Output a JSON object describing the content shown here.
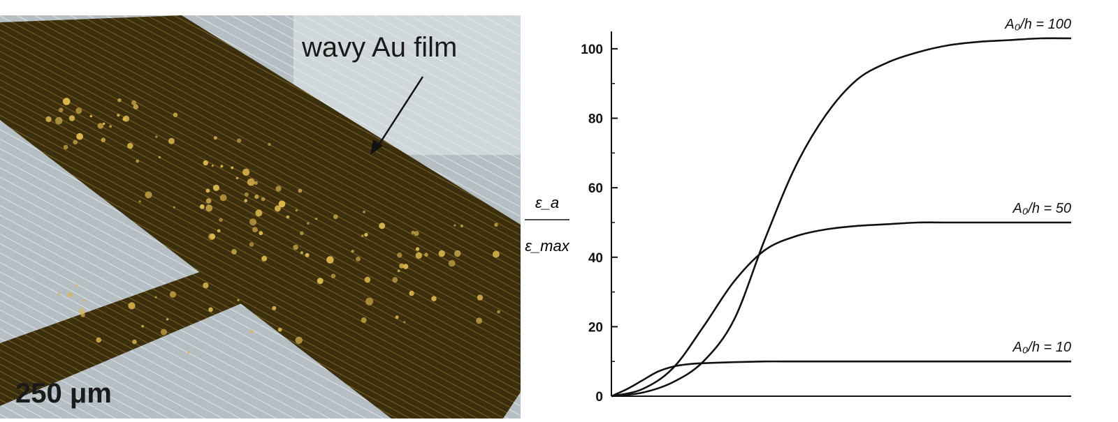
{
  "photo": {
    "annotation": "wavy Au film",
    "scale_bar": "250 μm",
    "colors": {
      "substrate": "#b9c2c6",
      "film": "#4a3b12",
      "grain": "#d8b24a"
    }
  },
  "chart_data": {
    "type": "line",
    "title": "",
    "xlabel": "",
    "ylabel_numerator": "ε_a",
    "ylabel_denominator": "ε_max",
    "xlim": [
      0.3,
      0.6
    ],
    "ylim": [
      0,
      105
    ],
    "yticks": [
      0,
      20,
      40,
      60,
      80,
      100
    ],
    "series": [
      {
        "name": "A₀/h = 100",
        "x": [
          0.3,
          0.32,
          0.34,
          0.36,
          0.38,
          0.4,
          0.42,
          0.44,
          0.46,
          0.48,
          0.5,
          0.52,
          0.54,
          0.56,
          0.58,
          0.6
        ],
        "y": [
          0,
          1,
          4,
          10,
          22,
          45,
          66,
          81,
          91,
          96,
          99,
          101,
          102,
          102.5,
          103,
          103
        ]
      },
      {
        "name": "A₀/h = 50",
        "x": [
          0.3,
          0.32,
          0.34,
          0.36,
          0.38,
          0.4,
          0.42,
          0.44,
          0.46,
          0.48,
          0.5,
          0.52,
          0.54,
          0.56,
          0.58,
          0.6
        ],
        "y": [
          0,
          2,
          8,
          20,
          33,
          42,
          46,
          48,
          49,
          49.5,
          50,
          50,
          50,
          50,
          50,
          50
        ]
      },
      {
        "name": "A₀/h = 10",
        "x": [
          0.3,
          0.31,
          0.32,
          0.33,
          0.34,
          0.35,
          0.36,
          0.38,
          0.4,
          0.42,
          0.45,
          0.5,
          0.55,
          0.6
        ],
        "y": [
          0,
          2,
          4.5,
          7,
          8.5,
          9.2,
          9.5,
          9.8,
          10,
          10,
          10,
          10,
          10,
          10
        ]
      }
    ],
    "series_labels": [
      "A₀/h = 100",
      "A₀/h = 50",
      "A₀/h = 10"
    ],
    "grid": false
  }
}
